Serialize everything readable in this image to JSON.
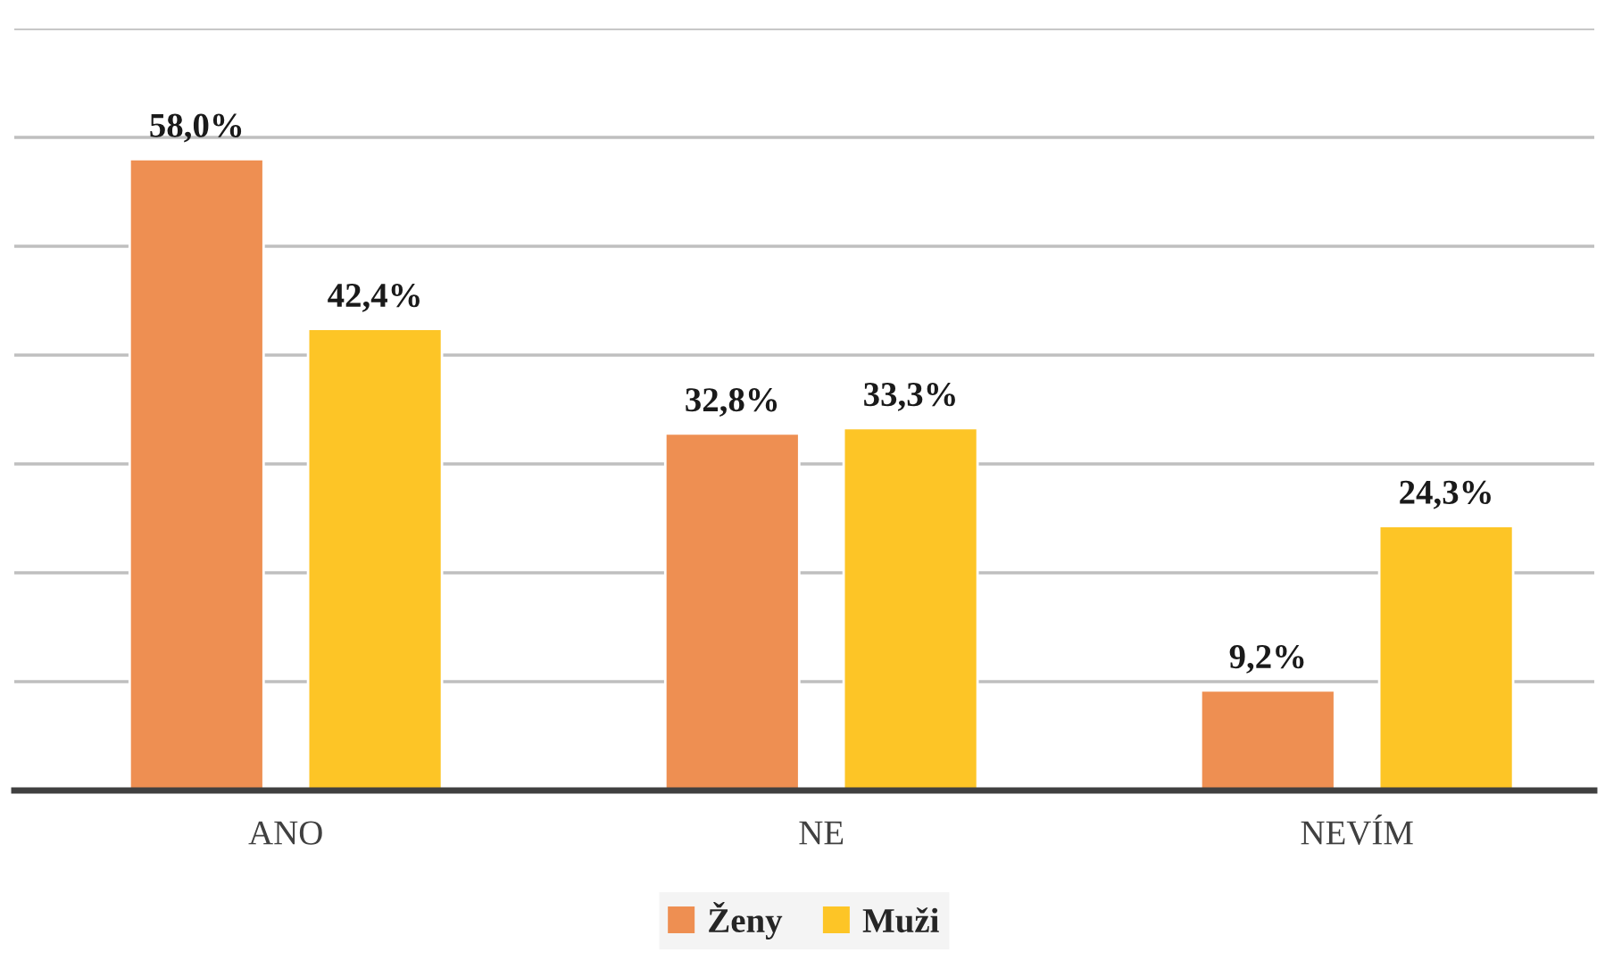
{
  "chart_data": {
    "type": "bar",
    "categories": [
      "ANO",
      "NE",
      "NEVÍM"
    ],
    "series": [
      {
        "name": "Ženy",
        "color": "#ee8f52",
        "values": [
          58.0,
          32.8,
          9.2
        ],
        "value_labels": [
          "58,0%",
          "32,8%",
          "9,2%"
        ]
      },
      {
        "name": "Muži",
        "color": "#fdc526",
        "values": [
          42.4,
          33.3,
          24.3
        ],
        "value_labels": [
          "42,4%",
          "33,3%",
          "24,3%"
        ]
      }
    ],
    "ylim": [
      0,
      70
    ],
    "yticks": [
      {
        "value": 0,
        "label": null
      },
      {
        "value": 10,
        "label": null
      },
      {
        "value": 20,
        "label": null
      },
      {
        "value": 30,
        "label": null
      },
      {
        "value": 40,
        "label": null
      },
      {
        "value": 50,
        "label": null
      },
      {
        "value": 60,
        "label": null
      },
      {
        "value": 70,
        "label": null
      }
    ],
    "grid": "y",
    "legend": "bottom",
    "tick_labels": "x"
  }
}
